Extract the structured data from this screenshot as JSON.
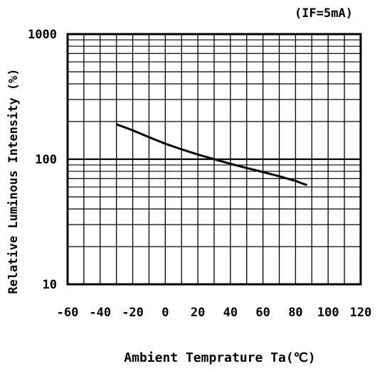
{
  "chart_data": {
    "type": "line",
    "title": "",
    "annotation": "(IF=5mA)",
    "xlabel": "Ambient Temprature Ta(℃)",
    "ylabel": "Relative Luminous Intensity (%)",
    "x_scale": "linear",
    "y_scale": "log",
    "xlim": [
      -60,
      120
    ],
    "ylim": [
      10,
      1000
    ],
    "x_ticks": [
      "-60",
      "-40",
      "-20",
      "0",
      "20",
      "40",
      "60",
      "80",
      "100",
      "120"
    ],
    "y_ticks": [
      "10",
      "100",
      "1000"
    ],
    "grid": true,
    "colors": {
      "line": "#000000",
      "grid": "#000000",
      "background": "#ffffff"
    },
    "series": [
      {
        "x": [
          -30,
          -20,
          -10,
          0,
          10,
          20,
          30,
          40,
          50,
          60,
          70,
          80,
          87
        ],
        "y": [
          190,
          170,
          150,
          133,
          120,
          109,
          100,
          92,
          85,
          79,
          73,
          67,
          62
        ]
      }
    ]
  }
}
